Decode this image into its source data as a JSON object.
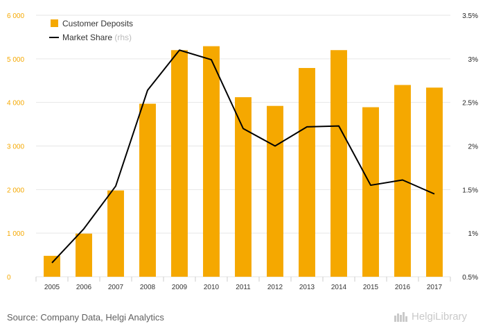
{
  "chart_data": {
    "type": "bar+line",
    "categories": [
      "2005",
      "2006",
      "2007",
      "2008",
      "2009",
      "2010",
      "2011",
      "2012",
      "2013",
      "2014",
      "2015",
      "2016",
      "2017"
    ],
    "series": [
      {
        "name": "Customer Deposits",
        "type": "bar",
        "axis": "left",
        "color": "#f5a800",
        "values": [
          480,
          990,
          1980,
          3970,
          5200,
          5290,
          4120,
          3920,
          4790,
          5200,
          3890,
          4400,
          4340
        ]
      },
      {
        "name": "Market Share",
        "type": "line",
        "axis": "right",
        "color": "#000000",
        "values": [
          0.66,
          1.05,
          1.54,
          2.64,
          3.1,
          2.99,
          2.2,
          2.0,
          2.22,
          2.23,
          1.55,
          1.61,
          1.45
        ]
      }
    ],
    "left_axis": {
      "min": 0,
      "max": 6000,
      "ticks": [
        0,
        1000,
        2000,
        3000,
        4000,
        5000,
        6000
      ],
      "tick_labels": [
        "0",
        "1 000",
        "2 000",
        "3 000",
        "4 000",
        "5 000",
        "6 000"
      ]
    },
    "right_axis": {
      "min": 0.5,
      "max": 3.5,
      "ticks": [
        0.5,
        1,
        1.5,
        2,
        2.5,
        3,
        3.5
      ],
      "tick_labels": [
        "0.5%",
        "1%",
        "1.5%",
        "2%",
        "2.5%",
        "3%",
        "3.5%"
      ]
    },
    "legend": {
      "items": [
        {
          "label": "Customer Deposits",
          "suffix": ""
        },
        {
          "label": "Market Share",
          "suffix": "(rhs)"
        }
      ],
      "position": "top-left"
    },
    "grid": true
  },
  "footer": {
    "source": "Source: Company Data, Helgi Analytics",
    "logo_text": "HelgiLibrary"
  }
}
